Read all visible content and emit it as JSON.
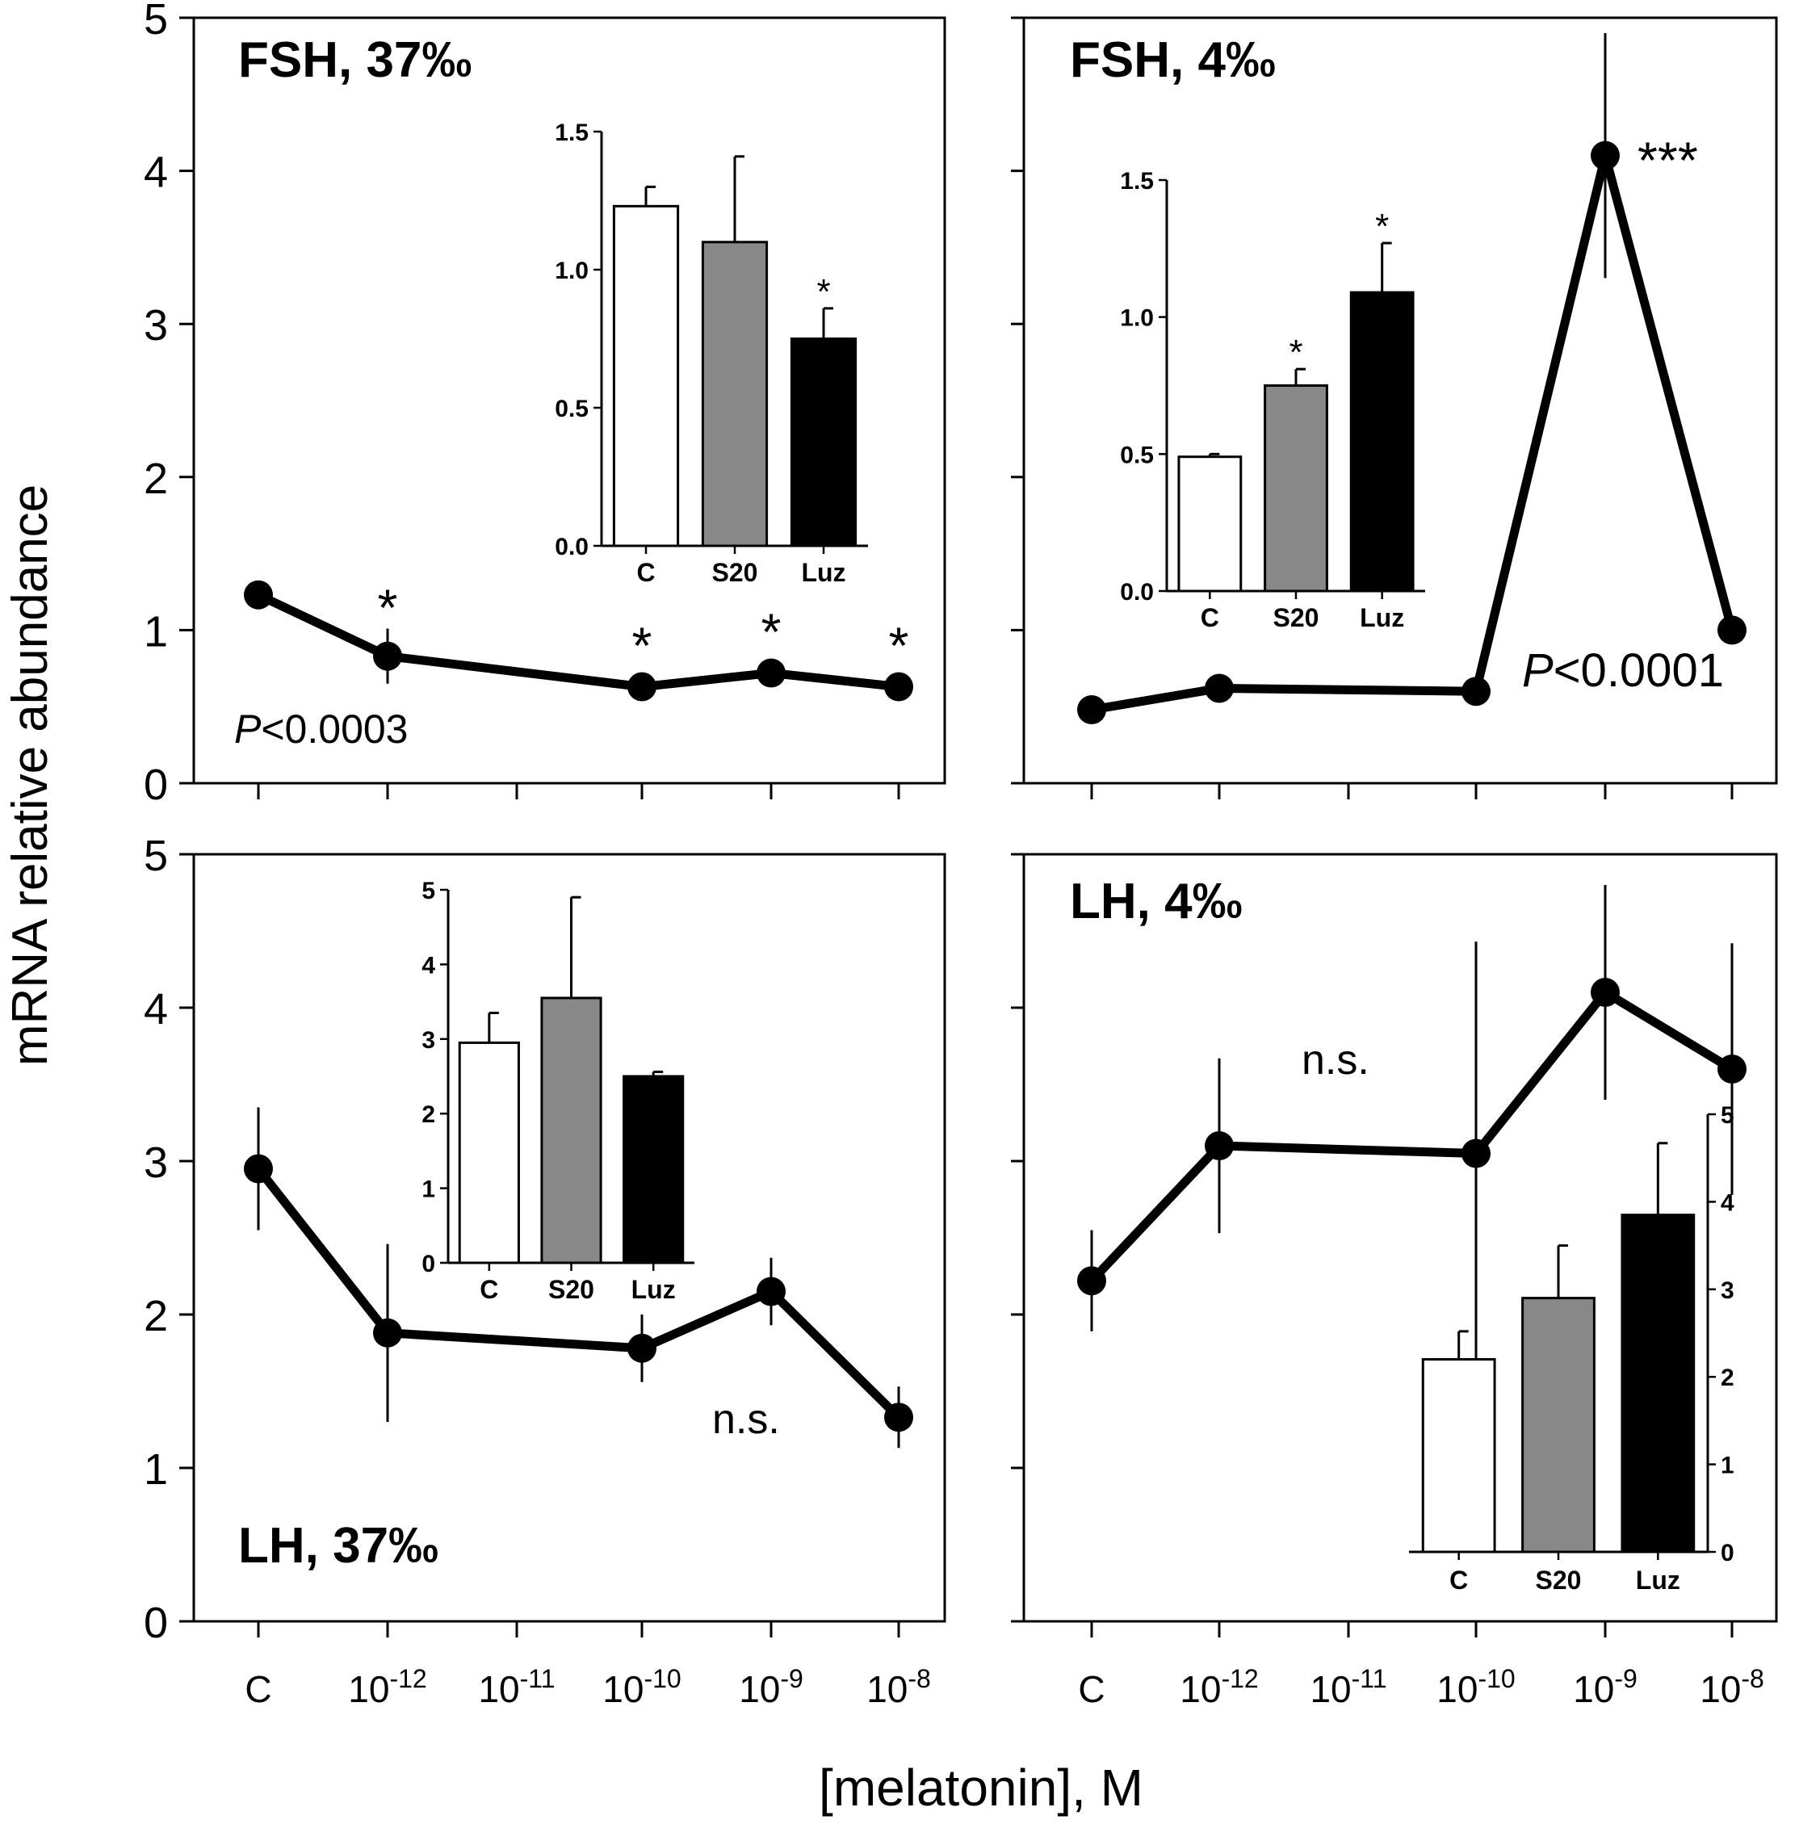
{
  "figure": {
    "ylabel": "mRNA relative abundance",
    "xlabel": "[melatonin], M"
  },
  "chart_data": [
    {
      "type": "line",
      "panel": "top-left",
      "title": "FSH, 37‰",
      "stat": {
        "p_prefix": "P",
        "p_text": "<0.0003"
      },
      "x_categories": [
        {
          "base": "C",
          "exp": ""
        },
        {
          "base": "10",
          "exp": "-12"
        },
        {
          "base": "10",
          "exp": "-11"
        },
        {
          "base": "10",
          "exp": "-10"
        },
        {
          "base": "10",
          "exp": "-9"
        },
        {
          "base": "10",
          "exp": "-8"
        }
      ],
      "ylim": [
        0,
        5
      ],
      "yticks": [
        "0",
        "1",
        "2",
        "3",
        "4",
        "5"
      ],
      "points": [
        {
          "x": 0,
          "y": 1.23,
          "err": 0.0,
          "sig": ""
        },
        {
          "x": 1,
          "y": 0.83,
          "err": 0.18,
          "sig": "*"
        },
        {
          "x": 3,
          "y": 0.63,
          "err": 0.0,
          "sig": "*"
        },
        {
          "x": 4,
          "y": 0.72,
          "err": 0.0,
          "sig": "*"
        },
        {
          "x": 5,
          "y": 0.63,
          "err": 0.0,
          "sig": "*"
        }
      ],
      "inset": {
        "type": "bar",
        "categories": [
          "C",
          "S20",
          "Luz"
        ],
        "values": [
          1.23,
          1.1,
          0.75
        ],
        "errors": [
          0.07,
          0.31,
          0.11
        ],
        "sig": [
          "",
          "",
          "*"
        ],
        "colors": [
          "#ffffff",
          "#888888",
          "#000000"
        ],
        "ylim": [
          0,
          1.5
        ],
        "yticks": [
          "0.0",
          "0.5",
          "1.0",
          "1.5"
        ]
      }
    },
    {
      "type": "line",
      "panel": "top-right",
      "title": "FSH, 4‰",
      "stat": {
        "p_prefix": "P",
        "p_text": "<0.0001"
      },
      "x_categories": [
        {
          "base": "C",
          "exp": ""
        },
        {
          "base": "10",
          "exp": "-12"
        },
        {
          "base": "10",
          "exp": "-11"
        },
        {
          "base": "10",
          "exp": "-10"
        },
        {
          "base": "10",
          "exp": "-9"
        },
        {
          "base": "10",
          "exp": "-8"
        }
      ],
      "ylim": [
        0,
        5
      ],
      "yticks": [
        "0",
        "1",
        "2",
        "3",
        "4",
        "5"
      ],
      "points": [
        {
          "x": 0,
          "y": 0.48,
          "err": 0.0,
          "sig": ""
        },
        {
          "x": 1,
          "y": 0.62,
          "err": 0.0,
          "sig": ""
        },
        {
          "x": 3,
          "y": 0.6,
          "err": 0.0,
          "sig": ""
        },
        {
          "x": 4,
          "y": 4.1,
          "err": 0.8,
          "sig": "***"
        },
        {
          "x": 5,
          "y": 1.0,
          "err": 0.0,
          "sig": ""
        }
      ],
      "inset": {
        "type": "bar",
        "categories": [
          "C",
          "S20",
          "Luz"
        ],
        "values": [
          0.49,
          0.75,
          1.09
        ],
        "errors": [
          0.01,
          0.06,
          0.18
        ],
        "sig": [
          "",
          "*",
          "*"
        ],
        "colors": [
          "#ffffff",
          "#888888",
          "#000000"
        ],
        "ylim": [
          0,
          1.5
        ],
        "yticks": [
          "0.0",
          "0.5",
          "1.0",
          "1.5"
        ]
      }
    },
    {
      "type": "line",
      "panel": "bottom-left",
      "title": "LH, 37‰",
      "stat": {
        "p_prefix": "",
        "p_text": "n.s."
      },
      "x_categories": [
        {
          "base": "C",
          "exp": ""
        },
        {
          "base": "10",
          "exp": "-12"
        },
        {
          "base": "10",
          "exp": "-11"
        },
        {
          "base": "10",
          "exp": "-10"
        },
        {
          "base": "10",
          "exp": "-9"
        },
        {
          "base": "10",
          "exp": "-8"
        }
      ],
      "ylim": [
        0,
        5
      ],
      "yticks": [
        "0",
        "1",
        "2",
        "3",
        "4",
        "5"
      ],
      "points": [
        {
          "x": 0,
          "y": 2.95,
          "err": 0.4,
          "sig": ""
        },
        {
          "x": 1,
          "y": 1.88,
          "err": 0.58,
          "sig": ""
        },
        {
          "x": 3,
          "y": 1.78,
          "err": 0.22,
          "sig": ""
        },
        {
          "x": 4,
          "y": 2.15,
          "err": 0.22,
          "sig": ""
        },
        {
          "x": 5,
          "y": 1.33,
          "err": 0.2,
          "sig": ""
        }
      ],
      "inset": {
        "type": "bar",
        "categories": [
          "C",
          "S20",
          "Luz"
        ],
        "values": [
          2.95,
          3.55,
          2.5
        ],
        "errors": [
          0.4,
          1.35,
          0.06
        ],
        "sig": [
          "",
          "",
          ""
        ],
        "colors": [
          "#ffffff",
          "#888888",
          "#000000"
        ],
        "ylim": [
          0,
          5
        ],
        "yticks": [
          "0",
          "1",
          "2",
          "3",
          "4",
          "5"
        ]
      }
    },
    {
      "type": "line",
      "panel": "bottom-right",
      "title": "LH, 4‰",
      "stat": {
        "p_prefix": "",
        "p_text": "n.s."
      },
      "x_categories": [
        {
          "base": "C",
          "exp": ""
        },
        {
          "base": "10",
          "exp": "-12"
        },
        {
          "base": "10",
          "exp": "-11"
        },
        {
          "base": "10",
          "exp": "-10"
        },
        {
          "base": "10",
          "exp": "-9"
        },
        {
          "base": "10",
          "exp": "-8"
        }
      ],
      "ylim": [
        0,
        5
      ],
      "yticks": [
        "0",
        "1",
        "2",
        "3",
        "4",
        "5"
      ],
      "points": [
        {
          "x": 0,
          "y": 2.22,
          "err": 0.33,
          "sig": ""
        },
        {
          "x": 1,
          "y": 3.1,
          "err": 0.57,
          "sig": ""
        },
        {
          "x": 3,
          "y": 3.05,
          "err": 1.38,
          "sig": ""
        },
        {
          "x": 4,
          "y": 4.1,
          "err": 0.7,
          "sig": ""
        },
        {
          "x": 5,
          "y": 3.6,
          "err": 0.82,
          "sig": ""
        }
      ],
      "inset": {
        "type": "bar",
        "categories": [
          "C",
          "S20",
          "Luz"
        ],
        "values": [
          2.2,
          2.9,
          3.85
        ],
        "errors": [
          0.32,
          0.6,
          0.82
        ],
        "sig": [
          "",
          "",
          ""
        ],
        "colors": [
          "#ffffff",
          "#888888",
          "#000000"
        ],
        "ylim": [
          0,
          5
        ],
        "yticks": [
          "0",
          "1",
          "2",
          "3",
          "4",
          "5"
        ]
      }
    }
  ]
}
